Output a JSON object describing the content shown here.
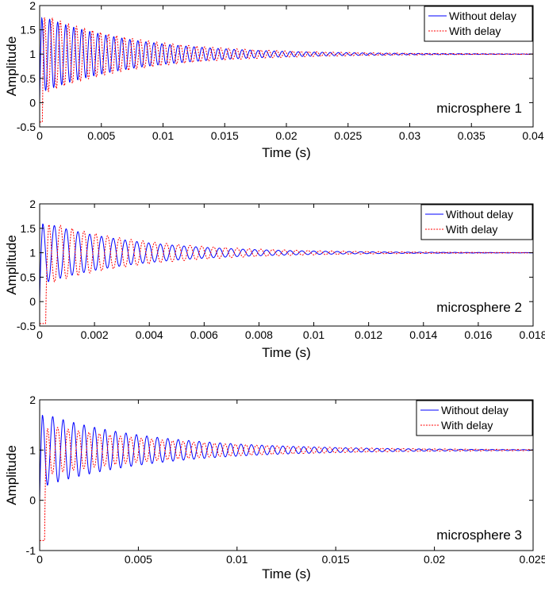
{
  "chart_data": [
    {
      "type": "line",
      "xlabel": "Time (s)",
      "ylabel": "Amplitude",
      "xlim": [
        0,
        0.04
      ],
      "ylim": [
        -0.5,
        2
      ],
      "xticks": [
        0,
        0.005,
        0.01,
        0.015,
        0.02,
        0.025,
        0.03,
        0.035,
        0.04
      ],
      "xtick_labels": [
        "0",
        "0.005",
        "0.01",
        "0.015",
        "0.02",
        "0.025",
        "0.03",
        "0.035",
        "0.04"
      ],
      "yticks": [
        -0.5,
        0,
        0.5,
        1,
        1.5,
        2
      ],
      "ytick_labels": [
        "-0.5",
        "0",
        "0.5",
        "1",
        "1.5",
        "2"
      ],
      "annotation": "microsphere 1",
      "grid": false,
      "legend_position": "top-right",
      "series": [
        {
          "name": "Without delay",
          "color": "#0000ff",
          "style": "solid",
          "delay": 0,
          "peak_first": 1.8,
          "settle_value": 1.0,
          "period": 0.00065,
          "decay_time": 0.0075,
          "start_value": 0.0
        },
        {
          "name": "With delay",
          "color": "#ff0000",
          "style": "dotted",
          "delay": 0.00022,
          "peak_first": 1.82,
          "settle_value": 1.0,
          "period": 0.00065,
          "decay_time": 0.0078,
          "start_value": -0.4
        }
      ]
    },
    {
      "type": "line",
      "xlabel": "Time (s)",
      "ylabel": "Amplitude",
      "xlim": [
        0,
        0.018
      ],
      "ylim": [
        -0.5,
        2
      ],
      "xticks": [
        0,
        0.002,
        0.004,
        0.006,
        0.008,
        0.01,
        0.012,
        0.014,
        0.016,
        0.018
      ],
      "xtick_labels": [
        "0",
        "0.002",
        "0.004",
        "0.006",
        "0.008",
        "0.01",
        "0.012",
        "0.014",
        "0.016",
        "0.018"
      ],
      "yticks": [
        -0.5,
        0,
        0.5,
        1,
        1.5,
        2
      ],
      "ytick_labels": [
        "-0.5",
        "0",
        "0.5",
        "1",
        "1.5",
        "2"
      ],
      "annotation": "microsphere 2",
      "grid": false,
      "legend_position": "top-right",
      "series": [
        {
          "name": "Without delay",
          "color": "#0000ff",
          "style": "solid",
          "delay": 0,
          "peak_first": 1.65,
          "settle_value": 1.0,
          "period": 0.00043,
          "decay_time": 0.0034,
          "start_value": 0.0
        },
        {
          "name": "With delay",
          "color": "#ff0000",
          "style": "dotted",
          "delay": 0.00022,
          "peak_first": 1.65,
          "settle_value": 1.0,
          "period": 0.00043,
          "decay_time": 0.0036,
          "start_value": -0.45
        }
      ]
    },
    {
      "type": "line",
      "xlabel": "Time (s)",
      "ylabel": "Amplitude",
      "xlim": [
        0,
        0.025
      ],
      "ylim": [
        -1,
        2
      ],
      "xticks": [
        0,
        0.005,
        0.01,
        0.015,
        0.02,
        0.025
      ],
      "xtick_labels": [
        "0",
        "0.005",
        "0.01",
        "0.015",
        "0.02",
        "0.025"
      ],
      "yticks": [
        -1,
        0,
        1,
        2
      ],
      "ytick_labels": [
        "-1",
        "0",
        "1",
        "2"
      ],
      "annotation": "microsphere 3",
      "grid": false,
      "legend_position": "top-right",
      "series": [
        {
          "name": "Without delay",
          "color": "#0000ff",
          "style": "solid",
          "delay": 0,
          "peak_first": 1.75,
          "settle_value": 1.0,
          "period": 0.00053,
          "decay_time": 0.0055,
          "start_value": 0.0
        },
        {
          "name": "With delay",
          "color": "#ff0000",
          "style": "dotted",
          "delay": 0.00025,
          "peak_first": 1.5,
          "settle_value": 1.0,
          "period": 0.00053,
          "decay_time": 0.0065,
          "start_value": -0.8
        }
      ]
    }
  ]
}
